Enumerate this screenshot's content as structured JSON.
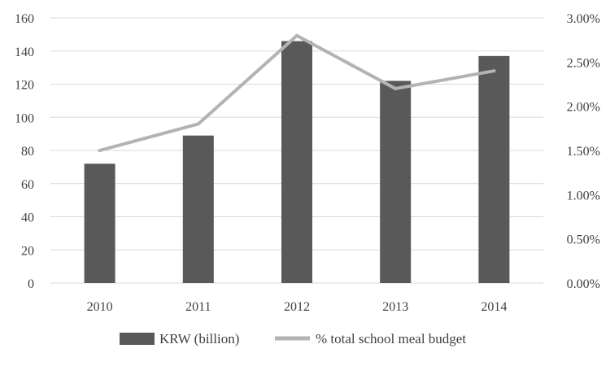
{
  "chart_data": {
    "type": "bar",
    "categories": [
      "2010",
      "2011",
      "2012",
      "2013",
      "2014"
    ],
    "series": [
      {
        "name": "KRW (billion)",
        "type": "bar",
        "axis": "left",
        "color": "#595959",
        "values": [
          72,
          89,
          146,
          122,
          137
        ]
      },
      {
        "name": "% total school meal budget",
        "type": "line",
        "axis": "right",
        "color": "#b3b3b3",
        "values": [
          1.5,
          1.8,
          2.8,
          2.2,
          2.4
        ]
      }
    ],
    "ylim_left": [
      0,
      160
    ],
    "yticks_left": [
      "0",
      "20",
      "40",
      "60",
      "80",
      "100",
      "120",
      "140",
      "160"
    ],
    "ylim_right": [
      0,
      3.0
    ],
    "yticks_right": [
      "0.00%",
      "0.50%",
      "1.00%",
      "1.50%",
      "2.00%",
      "2.50%",
      "3.00%"
    ],
    "grid": true,
    "legend_position": "bottom"
  }
}
